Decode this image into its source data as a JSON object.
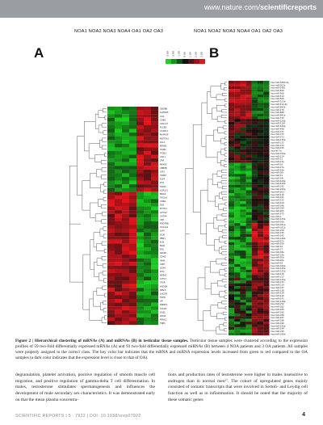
{
  "header": {
    "site_prefix": "www.nature.com/",
    "site_bold": "scientificreports"
  },
  "figure": {
    "column_headers_left": "NOA1 NOA2 NOA3 NOA4 OA1 OA2 OA3",
    "column_headers_right": "NOA1 NOA2 NOA3 NOA4 OA1 OA2 OA3",
    "panel_a": "A",
    "panel_b": "B",
    "key_labels": [
      "-3.00",
      "-2.00",
      "-1.00",
      "0.00",
      "1.00",
      "2.00",
      "3.00"
    ],
    "colors": {
      "up": "#e8141c",
      "down": "#19d41e",
      "dark": "#111111"
    },
    "heatmap_a": {
      "columns": 7,
      "top_block": {
        "rows": 23,
        "sign": [
          -1,
          -1,
          -1,
          -1,
          1,
          1,
          1
        ]
      },
      "bottom_block": {
        "rows": 36,
        "sign": [
          1,
          1,
          1,
          1,
          -1,
          -1,
          -1
        ]
      },
      "row_labels": [
        "GBGB6",
        "KLHDR5",
        "CAS",
        "CD86",
        "CXCL13",
        "PLCB2",
        "CASP11",
        "MAPK1P",
        "NOTCH3",
        "DLL1",
        "NFKB1",
        "ITGB1",
        "ITGB2",
        "CAV1",
        "ZNF",
        "MFAP2",
        "CEBPB",
        "IGF2",
        "TIMP2",
        "KLF4",
        "ZYX",
        "STAT1",
        "LGALS1",
        "MRAS",
        "TAGLN",
        "CNN1",
        "DES",
        "MYH11",
        "ACTG2",
        "GATA4",
        "VIM",
        "PDGFRB",
        "COL1A1",
        "LUM",
        "DCN",
        "FBN1",
        "ELN",
        "BGN",
        "FN1",
        "SPARC",
        "CDH2",
        "INHA",
        "AMH",
        "SOX9",
        "WT1",
        "NR5A1",
        "CYP17",
        "STAR",
        "HSD3B",
        "INSL3",
        "LHCGR",
        "FSHR",
        "AR",
        "DMRT1",
        "SYCP3",
        "DAZL",
        "DDX4",
        "PIWIL1",
        "TNP1"
      ]
    },
    "heatmap_b": {
      "columns": 7,
      "row_labels": [
        "hsa-miR-548d-5p",
        "hsa-miR-302a",
        "hsa-miR-548c",
        "hsa-miR-509",
        "hsa-miR-508",
        "hsa-miR-514",
        "hsa-miR-506",
        "hsa-miR-513a",
        "hsa-miR-514-3p",
        "hsa-miR-892b",
        "hsa-miR-470",
        "hsa-miR-888",
        "hsa-miR-891a",
        "hsa-miR-743",
        "hsa-miR-526b",
        "hsa-miR-518f",
        "hsa-miR-520a",
        "hsa-miR-498",
        "hsa-miR-371",
        "hsa-miR-372",
        "hsa-miR-373",
        "hsa-miR-135a",
        "hsa-miR-122",
        "hsa-miR-143",
        "hsa-miR-145",
        "hsa-let-7a",
        "hsa-miR-199a",
        "hsa-miR-214",
        "hsa-miR-21",
        "hsa-miR-23a",
        "hsa-miR-24",
        "hsa-miR-27a",
        "hsa-miR-29a",
        "hsa-miR-30c",
        "hsa-miR-31",
        "hsa-miR-34c",
        "hsa-miR-449a",
        "hsa-miR-449b",
        "hsa-miR-192",
        "hsa-miR-200a",
        "hsa-miR-203",
        "hsa-miR-210",
        "hsa-miR-221",
        "hsa-miR-222",
        "hsa-miR-224",
        "hsa-miR-34b",
        "hsa-miR-184",
        "hsa-miR-205",
        "hsa-miR-375",
        "hsa-miR-1",
        "hsa-miR-133a",
        "hsa-miR-206",
        "hsa-miR-181a",
        "hsa-miR-181b",
        "hsa-miR-150",
        "hsa-miR-155",
        "hsa-miR-142",
        "hsa-miR-146a",
        "hsa-miR-223",
        "hsa-miR-15a",
        "hsa-miR-16",
        "hsa-miR-17",
        "hsa-miR-18a",
        "hsa-miR-19a",
        "hsa-miR-20a",
        "hsa-miR-92a",
        "hsa-miR-93",
        "hsa-miR-106a",
        "hsa-miR-125a",
        "hsa-miR-125b",
        "hsa-miR-126",
        "hsa-miR-127",
        "hsa-miR-130a",
        "hsa-miR-132",
        "hsa-miR-134",
        "hsa-miR-137",
        "hsa-miR-138",
        "hsa-miR-139",
        "hsa-miR-140",
        "hsa-miR-141",
        "hsa-miR-148a",
        "hsa-miR-152",
        "hsa-miR-182",
        "hsa-miR-183",
        "hsa-miR-185",
        "hsa-miR-186",
        "hsa-miR-187",
        "hsa-miR-188",
        "hsa-miR-190",
        "hsa-miR-193a",
        "hsa-miR-194",
        "hsa-miR-195",
        "hsa-miR-196a"
      ]
    }
  },
  "caption": {
    "label": "Figure 2 | Hierarchical clustering of mRNAs (A) and miRNAs (B) in testicular tissue samples.",
    "text": " Testicular tissue samples were clustered according to the expression profiles of 59 two-fold differentially expressed mRNAs (A) and 93 two-fold differentially expressed miRNAs (B) between 4 NOA patients and 3 OA patients. All samples were properly assigned to the correct class. The key color bar indicates that the mRNA and miRNA expression levels increased from green to red compared to the OA samples (a dark color indicates that the expression level is close to that of OA)."
  },
  "body": {
    "left": "degranulation, platelet activation, positive regulation of smooth muscle cell migration, and positive regulation of gamma-delta T cell differentiation. In males, testosterone stimulates spermatogenesis and influences the development of male secondary sex characteristics. It was demonstrated early on that the mean plasma concentra-",
    "right": "tions and production rates of testosterone were higher in males insensitive to androgen than in normal men¹⁷. The cohort of upregulated genes mainly consisted of somatic transcripts that were involved in Sertoli- and Leydig cell function as well as in inflammation. It should be noted that the majority of these somatic genes"
  },
  "footer": {
    "text": "SCIENTIFIC REPORTS | 5 : 7922 | DOI: 10.1038/srep07922",
    "page": "4"
  }
}
